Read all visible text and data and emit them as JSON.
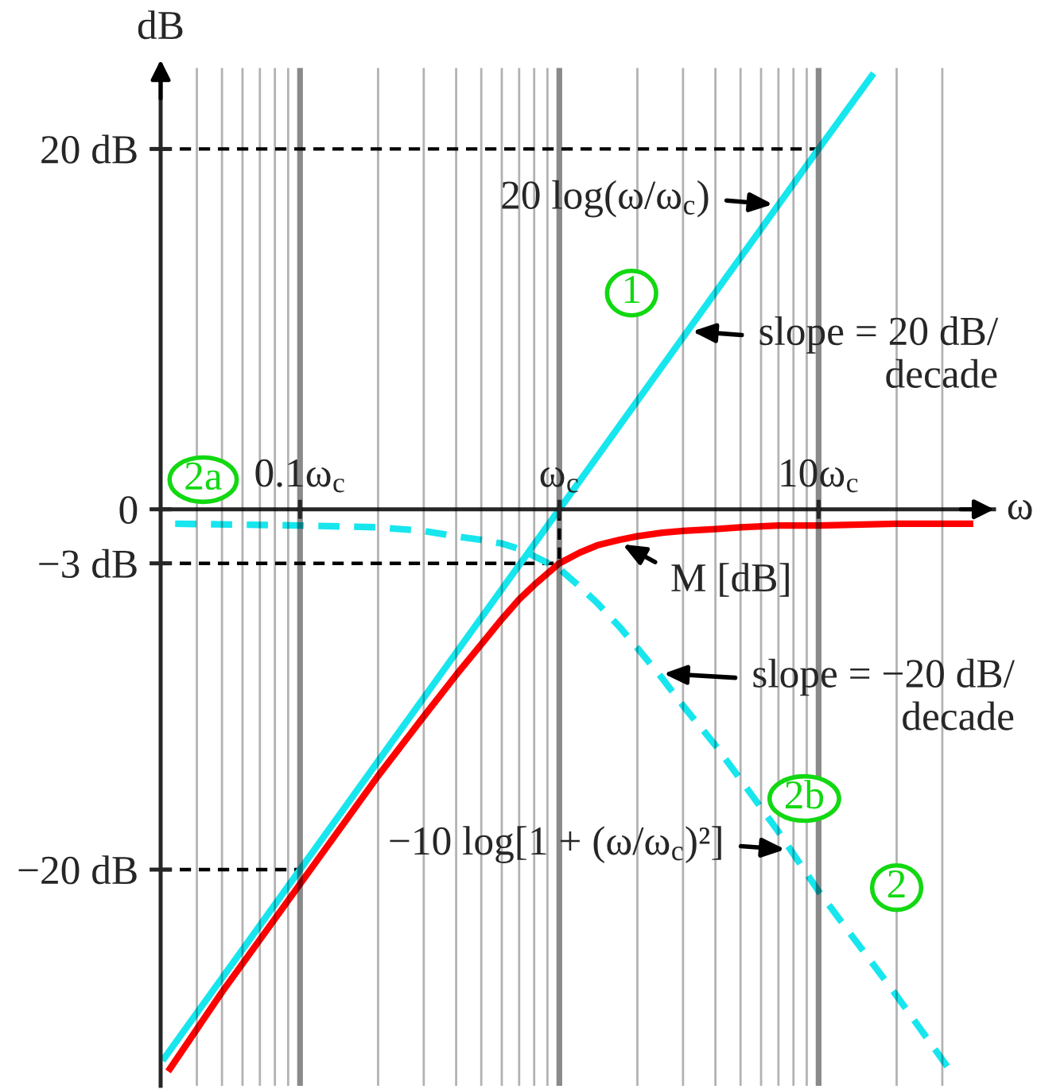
{
  "chart_data": {
    "type": "line",
    "xlabel": "ω",
    "ylabel": "dB",
    "log": "x",
    "xlim": [
      0.029,
      47.5
    ],
    "ylim": [
      -32,
      24.5
    ],
    "xticks": [
      {
        "value": 0.04,
        "label": null
      },
      {
        "value": 0.05,
        "label": null
      },
      {
        "value": 0.06,
        "label": null
      },
      {
        "value": 0.07,
        "label": null
      },
      {
        "value": 0.08,
        "label": null
      },
      {
        "value": 0.09,
        "label": null
      },
      {
        "value": 0.1,
        "label": "0.1ω$_{c}$"
      },
      {
        "value": 0.2,
        "label": null
      },
      {
        "value": 0.3,
        "label": null
      },
      {
        "value": 0.4,
        "label": null
      },
      {
        "value": 0.5,
        "label": null
      },
      {
        "value": 0.6,
        "label": null
      },
      {
        "value": 0.7,
        "label": null
      },
      {
        "value": 0.8,
        "label": null
      },
      {
        "value": 0.9,
        "label": null
      },
      {
        "value": 1,
        "label": "ω$_{c}$"
      },
      {
        "value": 2,
        "label": null
      },
      {
        "value": 3,
        "label": null
      },
      {
        "value": 4,
        "label": null
      },
      {
        "value": 5,
        "label": null
      },
      {
        "value": 6,
        "label": null
      },
      {
        "value": 7,
        "label": null
      },
      {
        "value": 8,
        "label": null
      },
      {
        "value": 9,
        "label": null
      },
      {
        "value": 10,
        "label": "10ω$_{c}$"
      },
      {
        "value": 20,
        "label": null
      },
      {
        "value": 30,
        "label": null
      }
    ],
    "yticks": [
      {
        "value": 20,
        "label": "20 dB"
      },
      0,
      {
        "value": -3,
        "label": "−3 dB"
      },
      {
        "value": -20,
        "label": "−20 dB"
      }
    ],
    "grid": "x",
    "series": [
      {
        "color": "#000000",
        "line_style": "dashed",
        "x": [
          0.029,
          10
        ],
        "values": [
          20,
          20
        ]
      },
      {
        "color": "#000000",
        "line_style": "dashed",
        "x": [
          0.029,
          1
        ],
        "values": [
          -3,
          -3
        ]
      },
      {
        "color": "#000000",
        "line_style": "dashed",
        "x": [
          0.029,
          0.1
        ],
        "values": [
          -20,
          -20
        ]
      },
      {
        "color": "#000000",
        "line_style": "dashed",
        "x": [
          1,
          1
        ],
        "values": [
          0,
          -3
        ]
      },
      {
        "color": "#17e6ee",
        "line_style": "solid",
        "x": [
          0.0295,
          0.1,
          1,
          10,
          16.3
        ],
        "values": [
          -30.6,
          -20,
          0,
          20,
          24.2
        ]
      },
      {
        "color": "#17e6ee",
        "line_style": "dashed",
        "x": [
          0.033,
          0.1,
          0.2,
          0.3,
          0.4,
          0.5,
          0.6,
          0.7,
          0.8,
          1,
          1.2,
          1.4,
          1.7,
          2,
          2.5,
          3,
          4,
          5,
          7,
          10,
          20,
          31.6
        ],
        "values": [
          -0.8,
          -0.9,
          -1.0,
          -1.2,
          -1.5,
          -1.7,
          -1.9,
          -2.2,
          -2.6,
          -3.3,
          -4.3,
          -5.2,
          -6.5,
          -7.7,
          -9.4,
          -10.9,
          -13.1,
          -15,
          -17.9,
          -21.2,
          -27,
          -31
        ]
      },
      {
        "color": "#ff0000",
        "line_style": "solid",
        "x": [
          0.031,
          0.05,
          0.1,
          0.2,
          0.3,
          0.4,
          0.5,
          0.6,
          0.7,
          0.8,
          1,
          1.2,
          1.4,
          1.7,
          2,
          2.5,
          3,
          4,
          5,
          7,
          10,
          20,
          39.5
        ],
        "values": [
          -31.2,
          -26.8,
          -20.8,
          -14.8,
          -11.5,
          -9.2,
          -7.5,
          -6.1,
          -5.0,
          -4.2,
          -3.0,
          -2.4,
          -2.0,
          -1.7,
          -1.5,
          -1.3,
          -1.2,
          -1.1,
          -1.0,
          -0.9,
          -0.9,
          -0.8,
          -0.8
        ]
      }
    ],
    "annotations": [
      {
        "text": "20 log(ω/ω$_{c}$)",
        "x": 7,
        "y": 16.9
      },
      {
        "text": "1",
        "x": 1.9,
        "y": 12
      },
      {
        "text": "slope = 20 dB/\ndecade",
        "x": 3.1,
        "y": 9.9
      },
      "2a",
      {
        "text": "M [dB]",
        "x": 1.68,
        "y": -1.8
      },
      {
        "text": "slope = −20 dB/\ndecade",
        "x": 2.4,
        "y": -9.1
      },
      "2b",
      {
        "text": "−10 log[1 + (ω/ω$_{c}$)²]",
        "x": 7.8,
        "y": -18.9
      },
      {
        "text": "2",
        "x": 20,
        "y": -21
      }
    ]
  }
}
